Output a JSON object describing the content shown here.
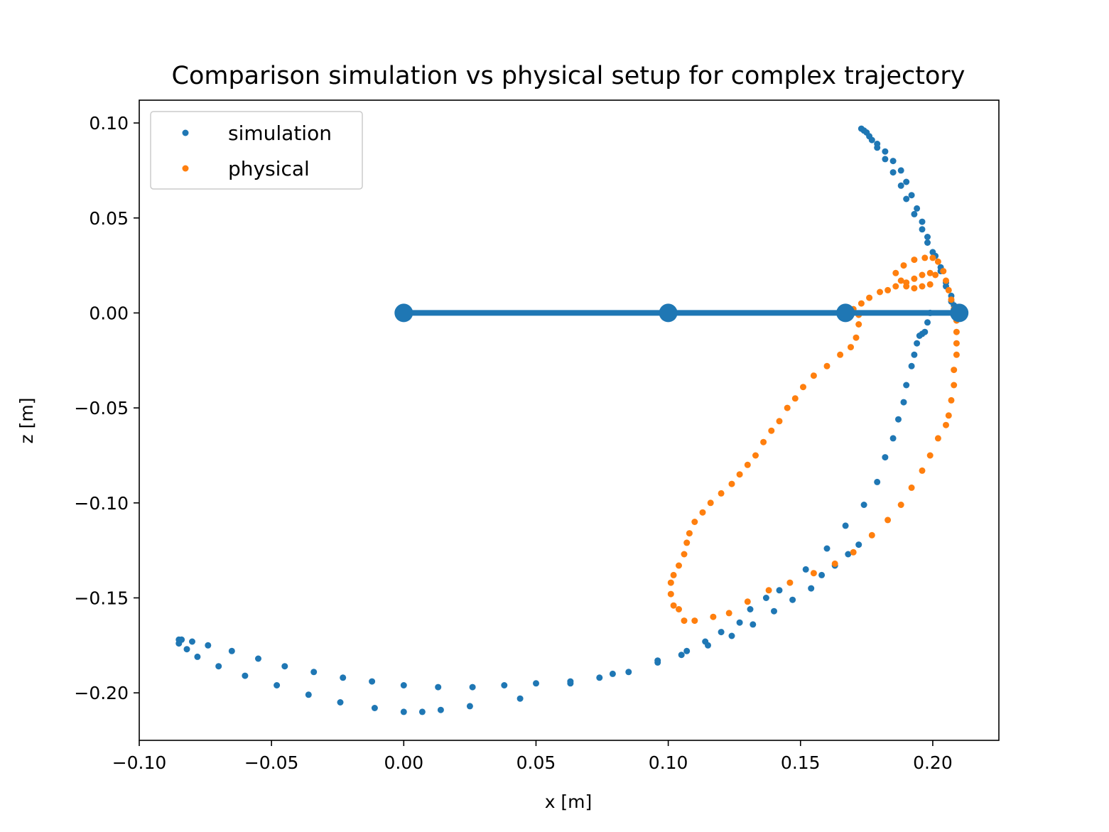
{
  "chart_data": {
    "type": "scatter",
    "title": "Comparison simulation vs physical setup for complex trajectory",
    "xlabel": "x [m]",
    "ylabel": "z [m]",
    "xlim": [
      -0.1,
      0.225
    ],
    "ylim": [
      -0.225,
      0.112
    ],
    "xticks": [
      -0.1,
      -0.05,
      0.0,
      0.05,
      0.1,
      0.15,
      0.2
    ],
    "xtick_labels": [
      "−0.10",
      "−0.05",
      "0.00",
      "0.05",
      "0.10",
      "0.15",
      "0.20"
    ],
    "yticks": [
      0.1,
      0.05,
      0.0,
      -0.05,
      -0.1,
      -0.15,
      -0.2
    ],
    "ytick_labels": [
      "0.10",
      "0.05",
      "0.00",
      "−0.05",
      "−0.10",
      "−0.15",
      "−0.20"
    ],
    "grid": false,
    "legend": {
      "placement": "upper-left"
    },
    "series": [
      {
        "name": "simulation",
        "color": "#1f77b4",
        "points": [
          [
            0.173,
            0.097
          ],
          [
            0.176,
            0.093
          ],
          [
            0.179,
            0.089
          ],
          [
            0.182,
            0.085
          ],
          [
            0.185,
            0.08
          ],
          [
            0.188,
            0.075
          ],
          [
            0.19,
            0.069
          ],
          [
            0.192,
            0.062
          ],
          [
            0.194,
            0.055
          ],
          [
            0.196,
            0.048
          ],
          [
            0.198,
            0.04
          ],
          [
            0.2,
            0.032
          ],
          [
            0.203,
            0.024
          ],
          [
            0.205,
            0.016
          ],
          [
            0.207,
            0.009
          ],
          [
            0.208,
            0.004
          ],
          [
            0.208,
            0.0
          ],
          [
            0.207,
            0.006
          ],
          [
            0.205,
            0.014
          ],
          [
            0.203,
            0.022
          ],
          [
            0.201,
            0.03
          ],
          [
            0.198,
            0.037
          ],
          [
            0.196,
            0.044
          ],
          [
            0.193,
            0.052
          ],
          [
            0.19,
            0.06
          ],
          [
            0.188,
            0.067
          ],
          [
            0.185,
            0.074
          ],
          [
            0.182,
            0.081
          ],
          [
            0.179,
            0.087
          ],
          [
            0.177,
            0.091
          ],
          [
            0.175,
            0.095
          ],
          [
            0.174,
            0.096
          ],
          [
            0.199,
            0.0
          ],
          [
            0.198,
            -0.005
          ],
          [
            0.197,
            -0.01
          ],
          [
            0.196,
            -0.011
          ],
          [
            0.195,
            -0.012
          ],
          [
            0.194,
            -0.016
          ],
          [
            0.193,
            -0.022
          ],
          [
            0.192,
            -0.028
          ],
          [
            0.19,
            -0.038
          ],
          [
            0.189,
            -0.047
          ],
          [
            0.187,
            -0.056
          ],
          [
            0.185,
            -0.066
          ],
          [
            0.182,
            -0.076
          ],
          [
            0.179,
            -0.089
          ],
          [
            0.174,
            -0.101
          ],
          [
            0.167,
            -0.112
          ],
          [
            0.16,
            -0.124
          ],
          [
            0.152,
            -0.135
          ],
          [
            0.142,
            -0.146
          ],
          [
            0.137,
            -0.15
          ],
          [
            0.131,
            -0.156
          ],
          [
            0.127,
            -0.163
          ],
          [
            0.12,
            -0.168
          ],
          [
            0.114,
            -0.173
          ],
          [
            0.107,
            -0.178
          ],
          [
            0.096,
            -0.183
          ],
          [
            0.079,
            -0.19
          ],
          [
            0.063,
            -0.195
          ],
          [
            0.044,
            -0.203
          ],
          [
            0.025,
            -0.207
          ],
          [
            0.014,
            -0.209
          ],
          [
            0.007,
            -0.21
          ],
          [
            0.0,
            -0.21
          ],
          [
            -0.011,
            -0.208
          ],
          [
            -0.024,
            -0.205
          ],
          [
            -0.036,
            -0.201
          ],
          [
            -0.048,
            -0.196
          ],
          [
            -0.06,
            -0.191
          ],
          [
            -0.07,
            -0.186
          ],
          [
            -0.078,
            -0.181
          ],
          [
            -0.082,
            -0.177
          ],
          [
            -0.085,
            -0.174
          ],
          [
            -0.085,
            -0.172
          ],
          [
            -0.084,
            -0.172
          ],
          [
            -0.08,
            -0.173
          ],
          [
            -0.074,
            -0.175
          ],
          [
            -0.065,
            -0.178
          ],
          [
            -0.055,
            -0.182
          ],
          [
            -0.045,
            -0.186
          ],
          [
            -0.034,
            -0.189
          ],
          [
            -0.023,
            -0.192
          ],
          [
            -0.012,
            -0.194
          ],
          [
            0.0,
            -0.196
          ],
          [
            0.013,
            -0.197
          ],
          [
            0.026,
            -0.197
          ],
          [
            0.038,
            -0.196
          ],
          [
            0.05,
            -0.195
          ],
          [
            0.063,
            -0.194
          ],
          [
            0.074,
            -0.192
          ],
          [
            0.085,
            -0.189
          ],
          [
            0.096,
            -0.184
          ],
          [
            0.105,
            -0.18
          ],
          [
            0.115,
            -0.175
          ],
          [
            0.124,
            -0.17
          ],
          [
            0.132,
            -0.164
          ],
          [
            0.14,
            -0.157
          ],
          [
            0.147,
            -0.151
          ],
          [
            0.154,
            -0.145
          ],
          [
            0.158,
            -0.138
          ],
          [
            0.163,
            -0.133
          ],
          [
            0.168,
            -0.127
          ],
          [
            0.172,
            -0.122
          ]
        ]
      },
      {
        "name": "physical",
        "color": "#ff7f0e",
        "points": [
          [
            0.166,
            0.0
          ],
          [
            0.17,
            0.002
          ],
          [
            0.173,
            0.005
          ],
          [
            0.176,
            0.008
          ],
          [
            0.18,
            0.011
          ],
          [
            0.183,
            0.012
          ],
          [
            0.186,
            0.014
          ],
          [
            0.19,
            0.016
          ],
          [
            0.193,
            0.018
          ],
          [
            0.196,
            0.02
          ],
          [
            0.199,
            0.021
          ],
          [
            0.201,
            0.02
          ],
          [
            0.199,
            0.015
          ],
          [
            0.196,
            0.014
          ],
          [
            0.193,
            0.013
          ],
          [
            0.19,
            0.014
          ],
          [
            0.188,
            0.017
          ],
          [
            0.186,
            0.021
          ],
          [
            0.189,
            0.025
          ],
          [
            0.193,
            0.028
          ],
          [
            0.197,
            0.029
          ],
          [
            0.2,
            0.029
          ],
          [
            0.202,
            0.027
          ],
          [
            0.204,
            0.022
          ],
          [
            0.205,
            0.017
          ],
          [
            0.206,
            0.012
          ],
          [
            0.207,
            0.007
          ],
          [
            0.208,
            0.002
          ],
          [
            0.209,
            -0.004
          ],
          [
            0.209,
            -0.01
          ],
          [
            0.209,
            -0.016
          ],
          [
            0.209,
            -0.022
          ],
          [
            0.208,
            -0.03
          ],
          [
            0.208,
            -0.038
          ],
          [
            0.207,
            -0.046
          ],
          [
            0.206,
            -0.054
          ],
          [
            0.205,
            -0.059
          ],
          [
            0.202,
            -0.066
          ],
          [
            0.199,
            -0.075
          ],
          [
            0.196,
            -0.083
          ],
          [
            0.192,
            -0.092
          ],
          [
            0.188,
            -0.101
          ],
          [
            0.183,
            -0.109
          ],
          [
            0.177,
            -0.117
          ],
          [
            0.17,
            -0.126
          ],
          [
            0.163,
            -0.132
          ],
          [
            0.155,
            -0.137
          ],
          [
            0.146,
            -0.142
          ],
          [
            0.138,
            -0.146
          ],
          [
            0.13,
            -0.152
          ],
          [
            0.123,
            -0.158
          ],
          [
            0.117,
            -0.16
          ],
          [
            0.11,
            -0.162
          ],
          [
            0.106,
            -0.162
          ],
          [
            0.104,
            -0.156
          ],
          [
            0.102,
            -0.154
          ],
          [
            0.101,
            -0.148
          ],
          [
            0.101,
            -0.142
          ],
          [
            0.102,
            -0.138
          ],
          [
            0.104,
            -0.133
          ],
          [
            0.106,
            -0.127
          ],
          [
            0.107,
            -0.121
          ],
          [
            0.108,
            -0.116
          ],
          [
            0.11,
            -0.11
          ],
          [
            0.113,
            -0.105
          ],
          [
            0.116,
            -0.1
          ],
          [
            0.12,
            -0.095
          ],
          [
            0.124,
            -0.09
          ],
          [
            0.127,
            -0.085
          ],
          [
            0.13,
            -0.08
          ],
          [
            0.133,
            -0.075
          ],
          [
            0.136,
            -0.068
          ],
          [
            0.139,
            -0.062
          ],
          [
            0.142,
            -0.057
          ],
          [
            0.145,
            -0.05
          ],
          [
            0.148,
            -0.045
          ],
          [
            0.151,
            -0.039
          ],
          [
            0.155,
            -0.033
          ],
          [
            0.16,
            -0.028
          ],
          [
            0.165,
            -0.022
          ],
          [
            0.169,
            -0.018
          ],
          [
            0.171,
            -0.013
          ],
          [
            0.172,
            -0.006
          ],
          [
            0.172,
            -0.001
          ]
        ]
      },
      {
        "name": "",
        "color": "#1f77b4",
        "style": "line-with-markers",
        "points": [
          [
            0.0,
            0.0
          ],
          [
            0.1,
            0.0
          ],
          [
            0.167,
            0.0
          ],
          [
            0.21,
            0.0
          ]
        ]
      }
    ]
  }
}
